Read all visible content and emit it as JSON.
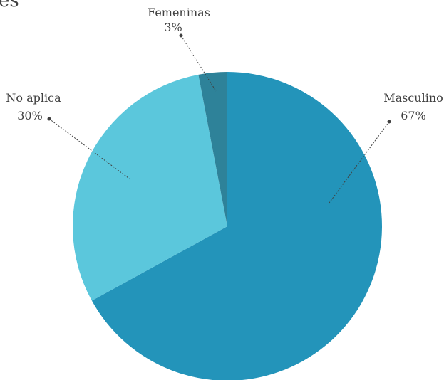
{
  "chart_data": {
    "type": "pie",
    "title": "es",
    "categories": [
      "Masculino",
      "No aplica",
      "Femeninas"
    ],
    "values": [
      67,
      30,
      3
    ],
    "value_labels": [
      "67%",
      "30%",
      "3%"
    ],
    "colors": [
      "#2394ba",
      "#5bc7dc",
      "#2e8299"
    ],
    "start_angle_deg": 0,
    "direction": "clockwise",
    "legend": "none",
    "labels": "outside-with-leader-lines"
  }
}
